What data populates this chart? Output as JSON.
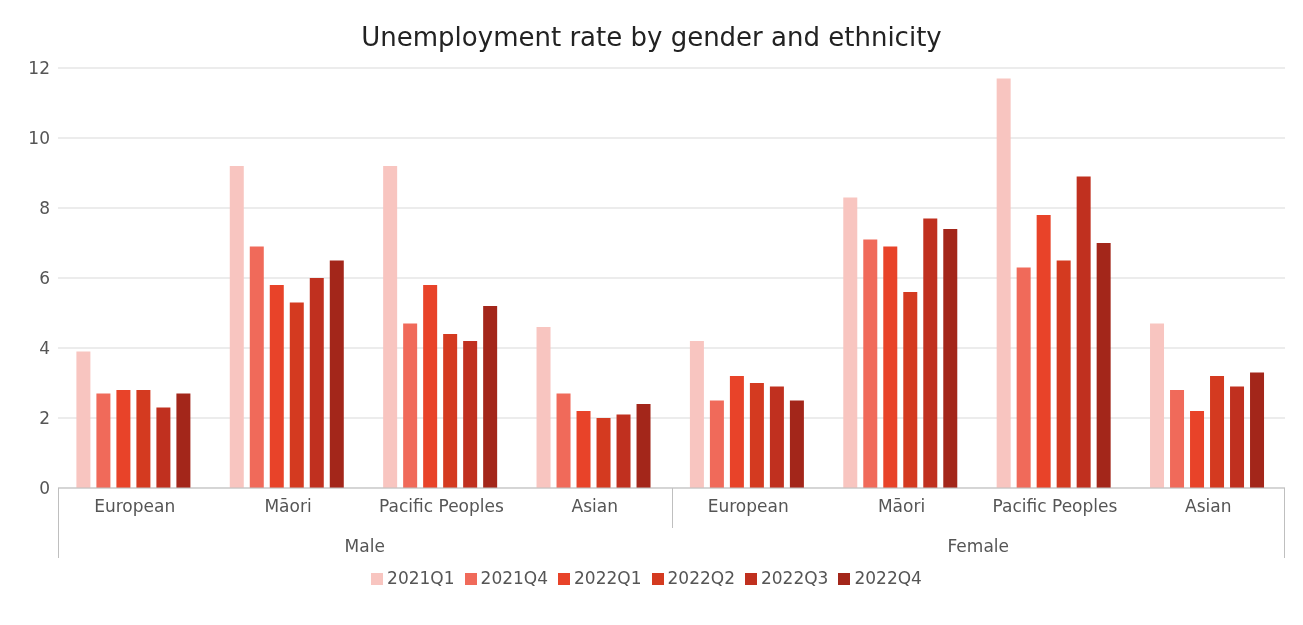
{
  "chart_data": {
    "type": "bar",
    "title": "Unemployment rate by gender and ethnicity",
    "categories": [
      "European",
      "Māori",
      "Pacific Peoples",
      "Asian",
      "European",
      "Māori",
      "Pacific Peoples",
      "Asian"
    ],
    "annotations": [
      "Male",
      "Female"
    ],
    "series": [
      {
        "name": "2021Q1",
        "color": "#f8c5c0",
        "values": [
          3.9,
          9.2,
          9.2,
          4.6,
          4.2,
          8.3,
          11.7,
          4.7
        ]
      },
      {
        "name": "2021Q4",
        "color": "#f06a5a",
        "values": [
          2.7,
          6.9,
          4.7,
          2.7,
          2.5,
          7.1,
          6.3,
          2.8
        ]
      },
      {
        "name": "2022Q1",
        "color": "#e84329",
        "values": [
          2.8,
          5.8,
          5.8,
          2.2,
          3.2,
          6.9,
          7.8,
          2.2
        ]
      },
      {
        "name": "2022Q2",
        "color": "#d43a20",
        "values": [
          2.8,
          5.3,
          4.4,
          2.0,
          3.0,
          5.6,
          6.5,
          3.2
        ]
      },
      {
        "name": "2022Q3",
        "color": "#c0301f",
        "values": [
          2.3,
          6.0,
          4.2,
          2.1,
          2.9,
          7.7,
          8.9,
          2.9
        ]
      },
      {
        "name": "2022Q4",
        "color": "#a3261a",
        "values": [
          2.7,
          6.5,
          5.2,
          2.4,
          2.5,
          7.4,
          7.0,
          3.3
        ]
      }
    ],
    "ylim": [
      0,
      12
    ],
    "yticks": [
      0,
      2,
      4,
      6,
      8,
      10,
      12
    ],
    "grid": "y",
    "legend": "bottom"
  }
}
